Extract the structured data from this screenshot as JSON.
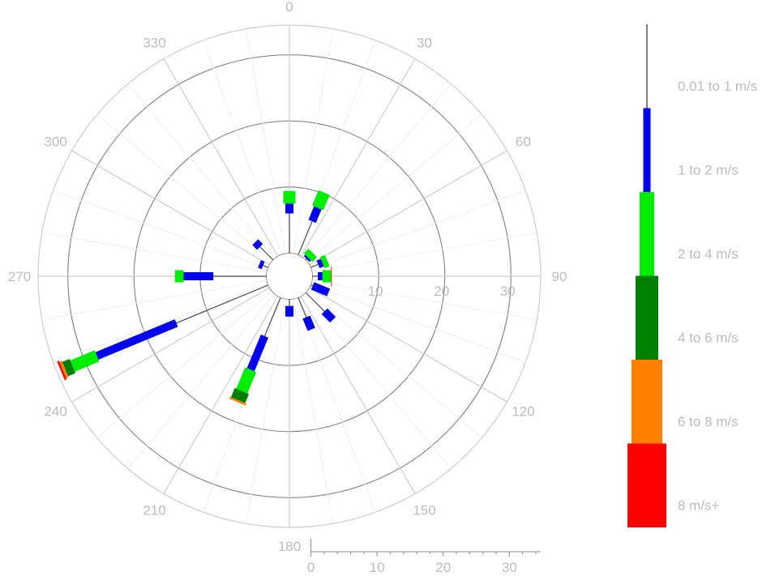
{
  "chart_data": {
    "type": "windrose",
    "title": "",
    "direction_ticks": [
      "0",
      "30",
      "60",
      "90",
      "120",
      "150",
      "180",
      "210",
      "240",
      "270",
      "300",
      "330"
    ],
    "radial_ticks": [
      "10",
      "20",
      "30"
    ],
    "bottom_axis_ticks": [
      "0",
      "10",
      "20",
      "30"
    ],
    "rmax": 38,
    "calm_radius": 3.5,
    "grid": true,
    "legend_placement": "right",
    "bins": [
      {
        "name": "0.01 to 1 m/s",
        "color": "#555555"
      },
      {
        "name": "1 to 2 m/s",
        "color": "#0000ee"
      },
      {
        "name": "2 to 4 m/s",
        "color": "#00ee00"
      },
      {
        "name": "4 to 6 m/s",
        "color": "#008000"
      },
      {
        "name": "6 to 8 m/s",
        "color": "#ff8000"
      },
      {
        "name": "8 m/s+",
        "color": "#ff0000"
      }
    ],
    "directions": [
      {
        "dir": 0,
        "values": [
          6.0,
          1.5,
          1.9,
          0,
          0,
          0
        ]
      },
      {
        "dir": 22.5,
        "values": [
          5.5,
          2.2,
          2.5,
          0,
          0,
          0
        ]
      },
      {
        "dir": 45,
        "values": [
          0.2,
          0.3,
          1.0,
          0,
          0,
          0
        ]
      },
      {
        "dir": 67.5,
        "values": [
          1.2,
          0.7,
          0.8,
          0,
          0,
          0
        ]
      },
      {
        "dir": 90,
        "values": [
          0.8,
          0.7,
          1.3,
          0,
          0,
          0.1
        ]
      },
      {
        "dir": 112.5,
        "values": [
          0.3,
          2.6,
          0,
          0,
          0,
          0
        ]
      },
      {
        "dir": 135,
        "values": [
          4.0,
          1.8,
          0,
          0,
          0,
          0
        ]
      },
      {
        "dir": 157.5,
        "values": [
          3.2,
          2.0,
          0,
          0,
          0,
          0
        ]
      },
      {
        "dir": 180,
        "values": [
          1.0,
          1.6,
          0,
          0,
          0,
          0
        ]
      },
      {
        "dir": 202.5,
        "values": [
          6.3,
          5.5,
          3.5,
          1.5,
          0.3,
          0
        ]
      },
      {
        "dir": 225,
        "values": [
          0,
          0,
          0,
          0,
          0,
          0
        ]
      },
      {
        "dir": 247.5,
        "values": [
          15.0,
          13.0,
          4.0,
          1.2,
          0.4,
          0.3
        ]
      },
      {
        "dir": 270,
        "values": [
          8.0,
          4.5,
          1.3,
          0,
          0,
          0
        ]
      },
      {
        "dir": 292.5,
        "values": [
          0.8,
          0.6,
          0,
          0,
          0,
          0
        ]
      },
      {
        "dir": 315,
        "values": [
          2.8,
          1.0,
          0,
          0,
          0,
          0
        ]
      },
      {
        "dir": 337.5,
        "values": [
          0,
          0,
          0,
          0,
          0,
          0
        ]
      }
    ]
  }
}
